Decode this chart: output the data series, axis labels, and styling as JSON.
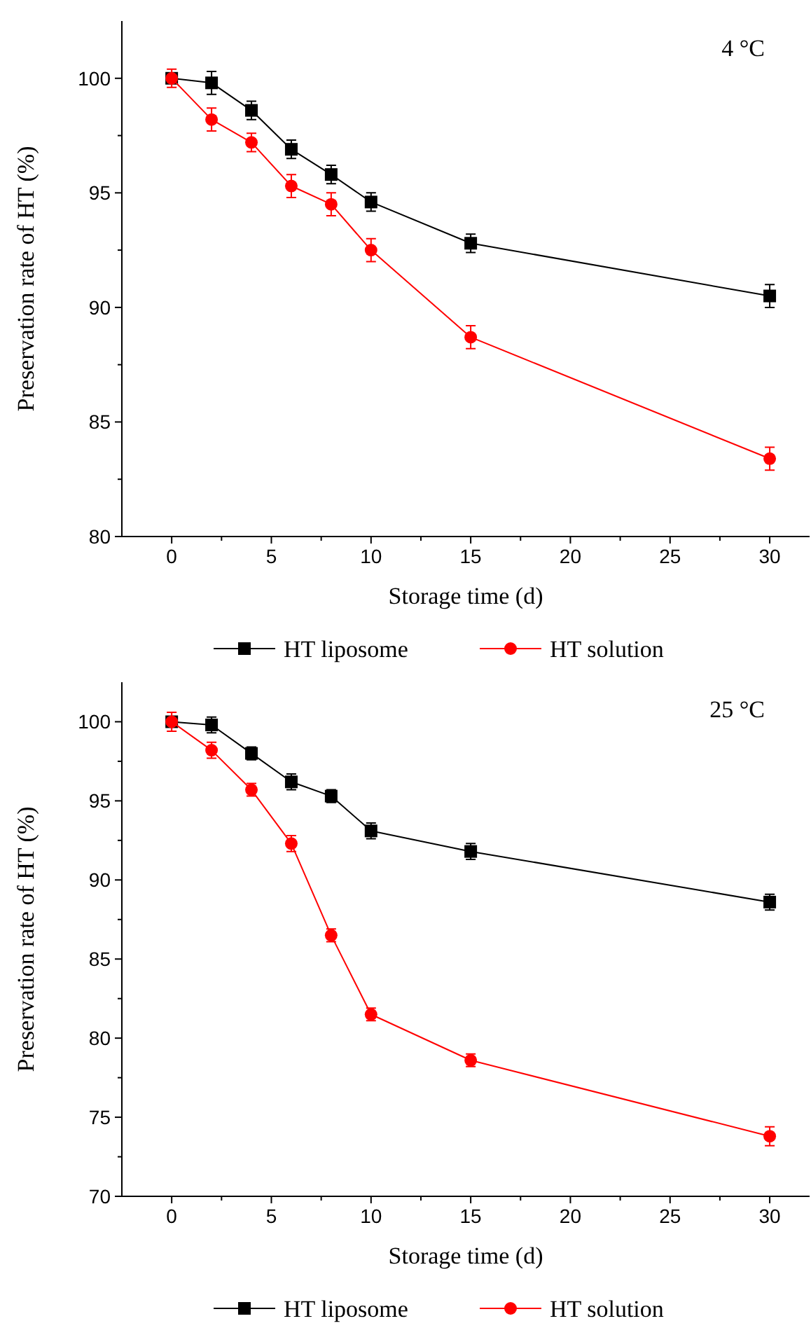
{
  "chart_data": [
    {
      "type": "line",
      "annotations": [
        "4 °C"
      ],
      "xlabel": "Storage time (d)",
      "ylabel": "Preservation rate of HT (%)",
      "x": [
        0,
        2,
        4,
        6,
        8,
        10,
        15,
        30
      ],
      "xlim": [
        -2.5,
        32
      ],
      "xticks": [
        0,
        {
          "value": 2.5,
          "label": null
        },
        5,
        {
          "value": 7.5,
          "label": null
        },
        10,
        {
          "value": 12.5,
          "label": null
        },
        15,
        {
          "value": 17.5,
          "label": null
        },
        20,
        {
          "value": 22.5,
          "label": null
        },
        25,
        {
          "value": 27.5,
          "label": null
        },
        30
      ],
      "ylim": [
        80,
        102.5
      ],
      "yticks": [
        80,
        {
          "value": 82.5,
          "label": null
        },
        85,
        {
          "value": 87.5,
          "label": null
        },
        90,
        {
          "value": 92.5,
          "label": null
        },
        95,
        {
          "value": 97.5,
          "label": null
        },
        100
      ],
      "legend": "bottom",
      "grid": false,
      "series": [
        {
          "name": "HT liposome",
          "color": "#000000",
          "marker": "square",
          "values": [
            100,
            99.8,
            98.6,
            96.9,
            95.8,
            94.6,
            92.8,
            90.5
          ],
          "errors": [
            null,
            0.5,
            0.4,
            0.4,
            0.4,
            0.4,
            0.4,
            0.5
          ]
        },
        {
          "name": "HT solution",
          "color": "#ff0000",
          "marker": "circle",
          "values": [
            100,
            98.2,
            97.2,
            95.3,
            94.5,
            92.5,
            88.7,
            83.4
          ],
          "errors": [
            0.4,
            0.5,
            0.4,
            0.5,
            0.5,
            0.5,
            0.5,
            0.5
          ]
        }
      ]
    },
    {
      "type": "line",
      "annotations": [
        "25 °C"
      ],
      "xlabel": "Storage time (d)",
      "ylabel": "Preservation rate of HT (%)",
      "x": [
        0,
        2,
        4,
        6,
        8,
        10,
        15,
        30
      ],
      "xlim": [
        -2.5,
        32
      ],
      "xticks": [
        0,
        {
          "value": 2.5,
          "label": null
        },
        5,
        {
          "value": 7.5,
          "label": null
        },
        10,
        {
          "value": 12.5,
          "label": null
        },
        15,
        {
          "value": 17.5,
          "label": null
        },
        20,
        {
          "value": 22.5,
          "label": null
        },
        25,
        {
          "value": 27.5,
          "label": null
        },
        30
      ],
      "ylim": [
        70,
        102.5
      ],
      "yticks": [
        70,
        {
          "value": 72.5,
          "label": null
        },
        75,
        {
          "value": 77.5,
          "label": null
        },
        80,
        {
          "value": 82.5,
          "label": null
        },
        85,
        {
          "value": 87.5,
          "label": null
        },
        90,
        {
          "value": 92.5,
          "label": null
        },
        95,
        {
          "value": 97.5,
          "label": null
        },
        100
      ],
      "legend": "bottom",
      "grid": false,
      "series": [
        {
          "name": "HT liposome",
          "color": "#000000",
          "marker": "square",
          "values": [
            100,
            99.8,
            98.0,
            96.2,
            95.3,
            93.1,
            91.8,
            88.6
          ],
          "errors": [
            null,
            0.5,
            0.4,
            0.5,
            0.4,
            0.5,
            0.5,
            0.5
          ]
        },
        {
          "name": "HT solution",
          "color": "#ff0000",
          "marker": "circle",
          "values": [
            100,
            98.2,
            95.7,
            92.3,
            86.5,
            81.5,
            78.6,
            73.8
          ],
          "errors": [
            0.6,
            0.5,
            0.4,
            0.5,
            0.4,
            0.4,
            0.4,
            0.6
          ]
        }
      ]
    }
  ]
}
